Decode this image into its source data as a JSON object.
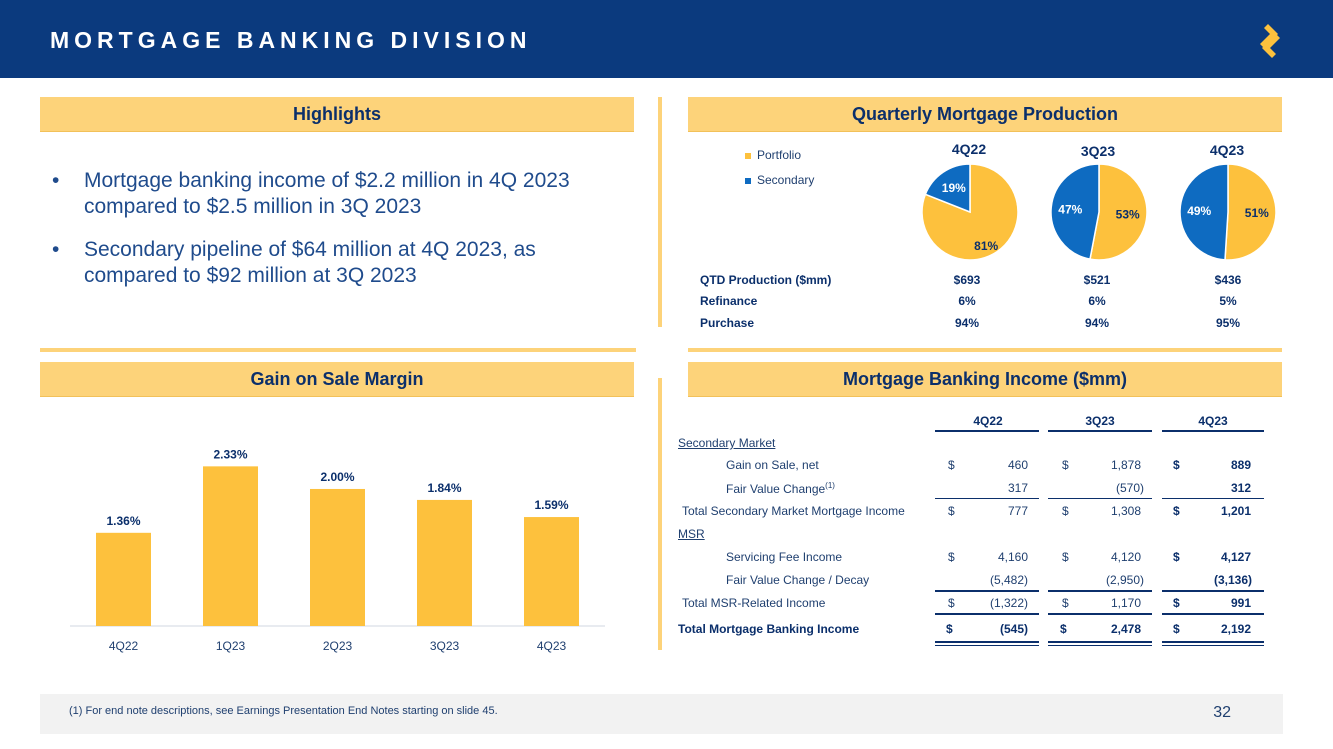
{
  "header": {
    "title": "MORTGAGE BANKING DIVISION"
  },
  "colors": {
    "navy": "#0b3a7e",
    "gold": "#fdc13d",
    "blue": "#0e6bc1",
    "bar_light": "#fdd37a"
  },
  "highlights": {
    "title": "Highlights",
    "bullets": [
      "Mortgage banking income of $2.2 million in 4Q 2023 compared to $2.5 million in 3Q 2023",
      "Secondary pipeline of $64 million at 4Q 2023, as compared to $92 million at 3Q 2023"
    ]
  },
  "production": {
    "title": "Quarterly Mortgage Production",
    "legend": [
      "Portfolio",
      "Secondary"
    ],
    "pies": [
      {
        "quarter": "4Q22",
        "portfolio": 81,
        "secondary": 19,
        "portfolio_label": "81%",
        "secondary_label": "19%"
      },
      {
        "quarter": "3Q23",
        "portfolio": 53,
        "secondary": 47,
        "portfolio_label": "53%",
        "secondary_label": "47%"
      },
      {
        "quarter": "4Q23",
        "portfolio": 51,
        "secondary": 49,
        "portfolio_label": "51%",
        "secondary_label": "49%"
      }
    ],
    "stats": [
      {
        "label": "QTD Production ($mm)",
        "values": [
          "$693",
          "$521",
          "$436"
        ]
      },
      {
        "label": "Refinance",
        "values": [
          "6%",
          "6%",
          "5%"
        ]
      },
      {
        "label": "Purchase",
        "values": [
          "94%",
          "94%",
          "95%"
        ]
      }
    ]
  },
  "gain_on_sale": {
    "title": "Gain on Sale Margin"
  },
  "chart_data": {
    "type": "bar",
    "categories": [
      "4Q22",
      "1Q23",
      "2Q23",
      "3Q23",
      "4Q23"
    ],
    "values": [
      1.36,
      2.33,
      2.0,
      1.84,
      1.59
    ],
    "data_labels": [
      "1.36%",
      "2.33%",
      "2.00%",
      "1.84%",
      "1.59%"
    ],
    "title": "Gain on Sale Margin",
    "xlabel": "",
    "ylabel": "",
    "ylim": [
      0,
      2.7
    ],
    "grid": false
  },
  "income": {
    "title": "Mortgage Banking Income ($mm)",
    "columns": [
      "4Q22",
      "3Q23",
      "4Q23"
    ],
    "section_secondary": "Secondary Market",
    "section_msr": "MSR",
    "rows": {
      "gain_on_sale": {
        "label": "Gain on Sale, net",
        "v": [
          "460",
          "1,878",
          "889"
        ]
      },
      "fair_value": {
        "label": "Fair Value Change",
        "sup": "(1)",
        "v": [
          "317",
          "(570)",
          "312"
        ]
      },
      "total_secondary": {
        "label": "Total Secondary Market Mortgage Income",
        "v": [
          "777",
          "1,308",
          "1,201"
        ]
      },
      "servicing": {
        "label": "Servicing Fee Income",
        "v": [
          "4,160",
          "4,120",
          "4,127"
        ]
      },
      "fv_decay": {
        "label": "Fair Value Change / Decay",
        "v": [
          "(5,482)",
          "(2,950)",
          "(3,136)"
        ]
      },
      "total_msr": {
        "label": "Total MSR-Related Income",
        "v": [
          "(1,322)",
          "1,170",
          "991"
        ]
      },
      "total": {
        "label": "Total Mortgage Banking Income",
        "v": [
          "(545)",
          "2,478",
          "2,192"
        ]
      }
    },
    "currency": "$"
  },
  "footer": {
    "note": "(1)   For end note descriptions, see Earnings Presentation End Notes starting on slide 45.",
    "page": "32"
  }
}
